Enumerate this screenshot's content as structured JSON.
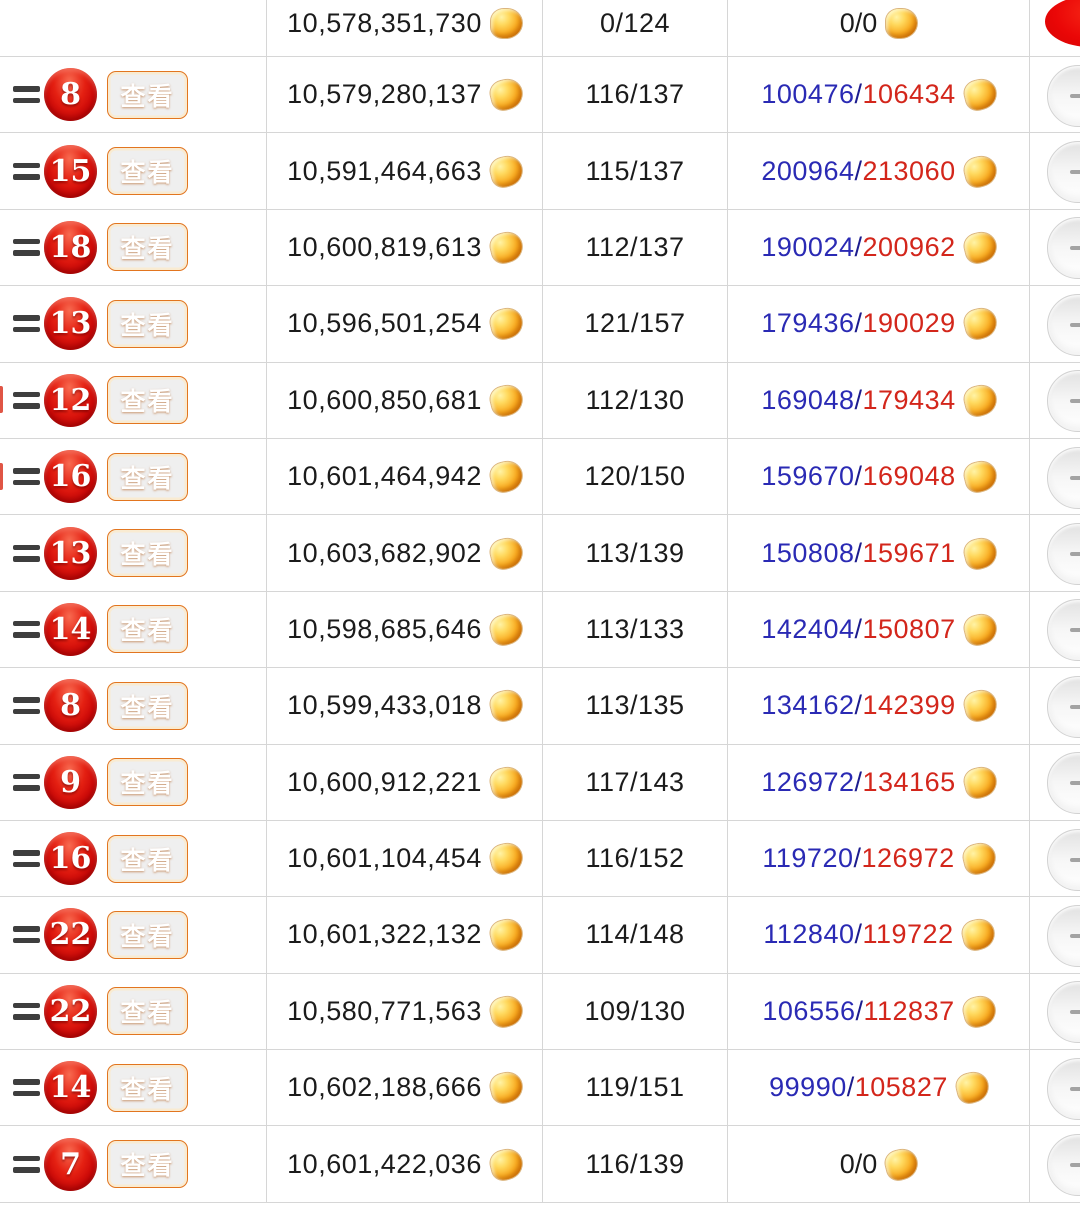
{
  "summary_row": {
    "score": "10,578,351,730",
    "progress": "0/124",
    "exp_plain": "0/0",
    "status_icon": "red-circle"
  },
  "action_label": "查看",
  "rows": [
    {
      "change": "=",
      "rank": "8",
      "action": "查看",
      "score": "10,579,280,137",
      "progress": "116/137",
      "exp_current": "100476",
      "exp_total": "106434"
    },
    {
      "change": "=",
      "rank": "15",
      "action": "查看",
      "score": "10,591,464,663",
      "progress": "115/137",
      "exp_current": "200964",
      "exp_total": "213060"
    },
    {
      "change": "=",
      "rank": "18",
      "action": "查看",
      "score": "10,600,819,613",
      "progress": "112/137",
      "exp_current": "190024",
      "exp_total": "200962"
    },
    {
      "change": "=",
      "rank": "13",
      "action": "查看",
      "score": "10,596,501,254",
      "progress": "121/157",
      "exp_current": "179436",
      "exp_total": "190029"
    },
    {
      "change": "=",
      "rank": "12",
      "action": "查看",
      "score": "10,600,850,681",
      "progress": "112/130",
      "exp_current": "169048",
      "exp_total": "179434",
      "edge_marker": true
    },
    {
      "change": "=",
      "rank": "16",
      "action": "查看",
      "score": "10,601,464,942",
      "progress": "120/150",
      "exp_current": "159670",
      "exp_total": "169048",
      "edge_marker": true
    },
    {
      "change": "=",
      "rank": "13",
      "action": "查看",
      "score": "10,603,682,902",
      "progress": "113/139",
      "exp_current": "150808",
      "exp_total": "159671"
    },
    {
      "change": "=",
      "rank": "14",
      "action": "查看",
      "score": "10,598,685,646",
      "progress": "113/133",
      "exp_current": "142404",
      "exp_total": "150807"
    },
    {
      "change": "=",
      "rank": "8",
      "action": "查看",
      "score": "10,599,433,018",
      "progress": "113/135",
      "exp_current": "134162",
      "exp_total": "142399"
    },
    {
      "change": "=",
      "rank": "9",
      "action": "查看",
      "score": "10,600,912,221",
      "progress": "117/143",
      "exp_current": "126972",
      "exp_total": "134165"
    },
    {
      "change": "=",
      "rank": "16",
      "action": "查看",
      "score": "10,601,104,454",
      "progress": "116/152",
      "exp_current": "119720",
      "exp_total": "126972"
    },
    {
      "change": "=",
      "rank": "22",
      "action": "查看",
      "score": "10,601,322,132",
      "progress": "114/148",
      "exp_current": "112840",
      "exp_total": "119722"
    },
    {
      "change": "=",
      "rank": "22",
      "action": "查看",
      "score": "10,580,771,563",
      "progress": "109/130",
      "exp_current": "106556",
      "exp_total": "112837"
    },
    {
      "change": "=",
      "rank": "14",
      "action": "查看",
      "score": "10,602,188,666",
      "progress": "119/151",
      "exp_current": "99990",
      "exp_total": "105827"
    },
    {
      "change": "=",
      "rank": "7",
      "action": "查看",
      "score": "10,601,422,036",
      "progress": "116/139",
      "exp_plain": "0/0"
    }
  ],
  "colors": {
    "exp_current_blue": "#2a2ab4",
    "exp_total_red": "#d3261b",
    "badge_red": "#e42012",
    "button_orange": "#f1731a",
    "coin_gold": "#f8a91f",
    "divider_gray": "#d6d6d6",
    "status_red": "#ea0707"
  },
  "icons": {
    "coin": "gold-bean-icon",
    "rank_change": "equal-sign-icon",
    "right_status_top": "red-circle",
    "right_status_rows": "gray-glossy-circle-with-dash"
  }
}
